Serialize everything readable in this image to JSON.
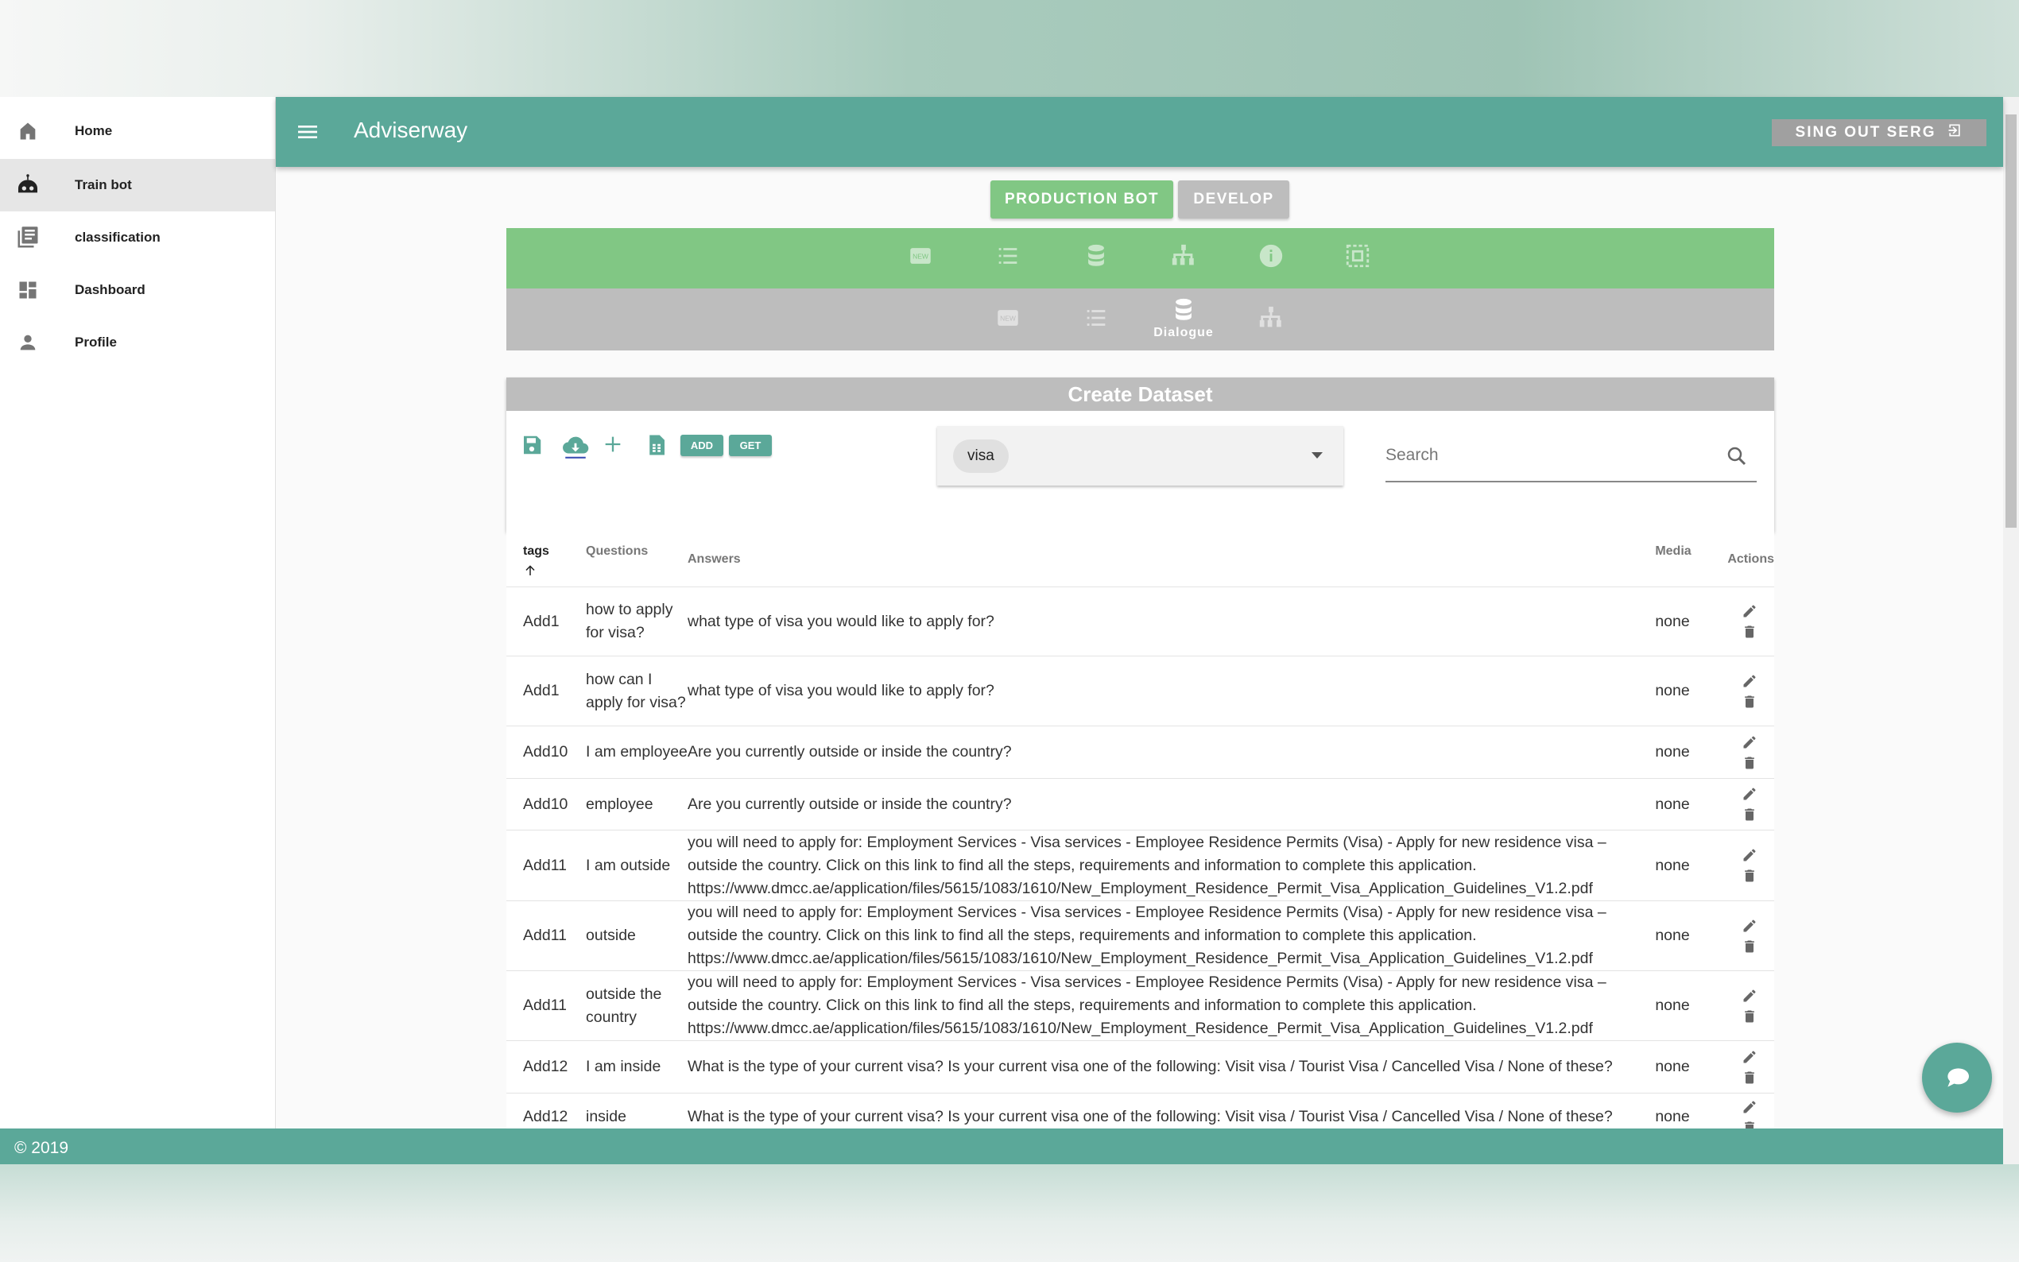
{
  "app": {
    "title": "Adviserway",
    "signout_label": "SING OUT SERG"
  },
  "sidebar": {
    "items": [
      {
        "label": "Home",
        "icon": "home-icon"
      },
      {
        "label": "Train bot",
        "icon": "robot-icon",
        "active": true
      },
      {
        "label": "classification",
        "icon": "library-books-icon"
      },
      {
        "label": "Dashboard",
        "icon": "dashboard-icon"
      },
      {
        "label": "Profile",
        "icon": "person-icon"
      }
    ]
  },
  "mode": {
    "production_label": "PRODUCTION BOT",
    "develop_label": "DEVELOP",
    "active": "production"
  },
  "subnav": {
    "active_label": "Dialogue"
  },
  "dataset": {
    "title": "Create Dataset",
    "add_label": "ADD",
    "get_label": "GET",
    "selected_tag": "visa",
    "search_placeholder": "Search"
  },
  "table": {
    "headers": {
      "tags": "tags",
      "questions": "Questions",
      "answers": "Answers",
      "media": "Media",
      "actions": "Actions"
    },
    "sort": {
      "column": "tags",
      "direction": "asc"
    },
    "rows": [
      {
        "tag": "Add1",
        "question": "how to apply for visa?",
        "answer": "what type of visa you would like to apply for?",
        "media": "none"
      },
      {
        "tag": "Add1",
        "question": "how can I apply for visa?",
        "answer": "what type of visa you would like to apply for?",
        "media": "none"
      },
      {
        "tag": "Add10",
        "question": "I am employee",
        "answer": "Are you currently outside or inside the country?",
        "media": "none"
      },
      {
        "tag": "Add10",
        "question": "employee",
        "answer": "Are you currently outside or inside the country?",
        "media": "none"
      },
      {
        "tag": "Add11",
        "question": "I am outside",
        "answer": "you will need to apply for: Employment Services - Visa services - Employee Residence Permits (Visa) - Apply for new residence visa – outside the country. Click on this link to find all the steps, requirements and information to complete this application. https://www.dmcc.ae/application/files/5615/1083/1610/New_Employment_Residence_Permit_Visa_Application_Guidelines_V1.2.pdf",
        "media": "none"
      },
      {
        "tag": "Add11",
        "question": "outside",
        "answer": "you will need to apply for: Employment Services - Visa services - Employee Residence Permits (Visa) - Apply for new residence visa – outside the country. Click on this link to find all the steps, requirements and information to complete this application. https://www.dmcc.ae/application/files/5615/1083/1610/New_Employment_Residence_Permit_Visa_Application_Guidelines_V1.2.pdf",
        "media": "none"
      },
      {
        "tag": "Add11",
        "question": "outside the country",
        "answer": "you will need to apply for: Employment Services - Visa services - Employee Residence Permits (Visa) - Apply for new residence visa – outside the country. Click on this link to find all the steps, requirements and information to complete this application. https://www.dmcc.ae/application/files/5615/1083/1610/New_Employment_Residence_Permit_Visa_Application_Guidelines_V1.2.pdf",
        "media": "none"
      },
      {
        "tag": "Add12",
        "question": "I am inside",
        "answer": "What is the type of your current visa? Is your current visa one of the following: Visit visa / Tourist Visa / Cancelled Visa / None of these?",
        "media": "none"
      },
      {
        "tag": "Add12",
        "question": "inside",
        "answer": "What is the type of your current visa? Is your current visa one of the following: Visit visa / Tourist Visa / Cancelled Visa / None of these?",
        "media": "none"
      }
    ]
  },
  "footer": {
    "copyright": "© 2019"
  },
  "colors": {
    "primary": "#5ba899",
    "green": "#81c784",
    "gray": "#bdbdbd"
  }
}
